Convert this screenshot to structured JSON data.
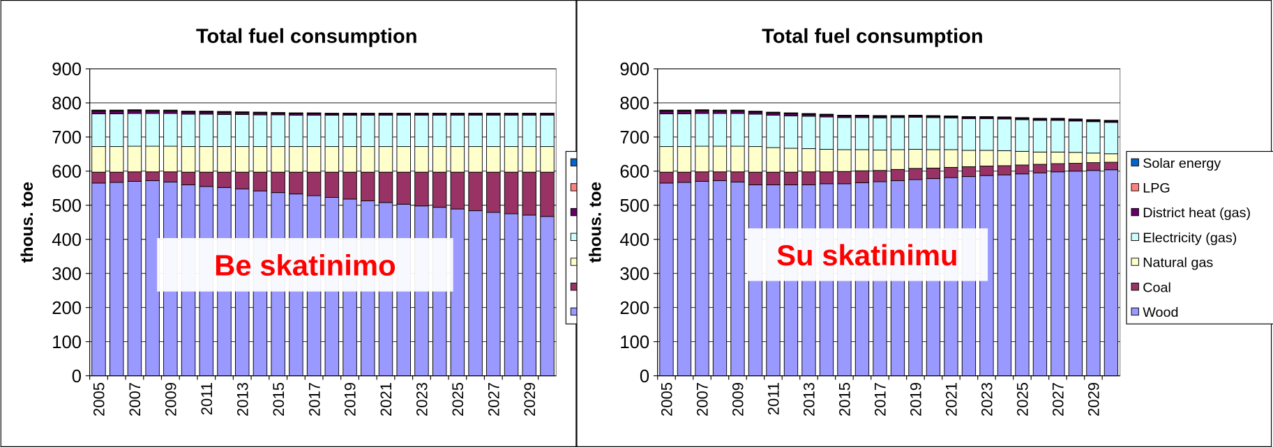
{
  "chart_data": [
    {
      "type": "bar",
      "stacked": true,
      "title": "Total fuel consumption",
      "ylabel": "thous. toe",
      "annotation": "Be skatinimo",
      "categories": [
        "2005",
        null,
        "2007",
        null,
        "2009",
        null,
        "2011",
        null,
        "2013",
        null,
        "2015",
        null,
        "2017",
        null,
        "2019",
        null,
        "2021",
        null,
        "2023",
        null,
        "2025",
        null,
        "2027",
        null,
        "2029",
        null
      ],
      "ylim": [
        0,
        900
      ],
      "yticks": [
        0,
        100,
        200,
        300,
        400,
        500,
        600,
        700,
        800,
        900
      ],
      "grid": true,
      "series": [
        {
          "color": "#9999ff",
          "values": [
            565,
            567,
            570,
            572,
            568,
            560,
            555,
            552,
            548,
            542,
            537,
            533,
            528,
            523,
            518,
            513,
            508,
            503,
            498,
            494,
            489,
            484,
            479,
            475,
            471,
            467
          ]
        },
        {
          "color": "#993366",
          "values": [
            32,
            30,
            28,
            26,
            30,
            37,
            42,
            45,
            49,
            55,
            60,
            64,
            69,
            74,
            79,
            84,
            89,
            94,
            99,
            103,
            108,
            113,
            118,
            122,
            126,
            130
          ]
        },
        {
          "color": "#ffffcc",
          "values": [
            75,
            75,
            75,
            75,
            75,
            75,
            75,
            75,
            75,
            75,
            75,
            75,
            75,
            75,
            75,
            75,
            75,
            75,
            75,
            75,
            75,
            75,
            75,
            75,
            75,
            75
          ]
        },
        {
          "color": "#ccffff",
          "values": [
            96,
            96,
            96,
            96,
            96,
            95,
            95,
            94,
            94,
            93,
            93,
            92,
            92,
            92,
            92,
            92,
            92,
            92,
            92,
            92,
            92,
            92,
            92,
            92,
            92,
            92
          ]
        },
        {
          "color": "#660066",
          "values": [
            8,
            8,
            8,
            7,
            7,
            6,
            6,
            6,
            5,
            5,
            4,
            4,
            4,
            3,
            3,
            3,
            3,
            3,
            3,
            3,
            3,
            3,
            3,
            3,
            3,
            3
          ]
        },
        {
          "color": "#ff8080",
          "values": [
            2,
            2,
            2,
            2,
            2,
            2,
            2,
            2,
            2,
            2,
            2,
            2,
            2,
            2,
            2,
            2,
            2,
            2,
            2,
            2,
            2,
            2,
            2,
            2,
            2,
            2
          ]
        },
        {
          "color": "#0066cc",
          "values": [
            1,
            1,
            1,
            1,
            1,
            1,
            1,
            1,
            1,
            1,
            1,
            1,
            1,
            1,
            1,
            1,
            1,
            1,
            1,
            1,
            1,
            1,
            1,
            1,
            1,
            1
          ]
        }
      ]
    },
    {
      "type": "bar",
      "stacked": true,
      "title": "Total fuel consumption",
      "ylabel": "thous. toe",
      "annotation": "Su skatinimu",
      "categories": [
        "2005",
        null,
        "2007",
        null,
        "2009",
        null,
        "2011",
        null,
        "2013",
        null,
        "2015",
        null,
        "2017",
        null,
        "2019",
        null,
        "2021",
        null,
        "2023",
        null,
        "2025",
        null,
        "2027",
        null,
        "2029",
        null
      ],
      "ylim": [
        0,
        900
      ],
      "yticks": [
        0,
        100,
        200,
        300,
        400,
        500,
        600,
        700,
        800,
        900
      ],
      "grid": true,
      "series": [
        {
          "name": "Wood",
          "color": "#9999ff",
          "values": [
            565,
            567,
            570,
            572,
            568,
            560,
            560,
            560,
            560,
            563,
            563,
            566,
            569,
            572,
            575,
            578,
            581,
            584,
            587,
            589,
            592,
            595,
            598,
            600,
            602,
            604
          ]
        },
        {
          "name": "Coal",
          "color": "#993366",
          "values": [
            32,
            30,
            28,
            26,
            30,
            37,
            37,
            37,
            38,
            35,
            36,
            35,
            33,
            33,
            33,
            31,
            30,
            29,
            28,
            27,
            26,
            25,
            24,
            23,
            23,
            22
          ]
        },
        {
          "name": "Natural gas",
          "color": "#ffffcc",
          "values": [
            75,
            75,
            75,
            75,
            75,
            75,
            72,
            70,
            68,
            66,
            64,
            62,
            60,
            58,
            56,
            54,
            52,
            48,
            46,
            44,
            40,
            36,
            34,
            32,
            28,
            25
          ]
        },
        {
          "name": "Electricity (gas)",
          "color": "#ccffff",
          "values": [
            96,
            96,
            96,
            96,
            96,
            95,
            95,
            95,
            95,
            95,
            94,
            94,
            94,
            94,
            94,
            94,
            93,
            93,
            93,
            93,
            93,
            93,
            93,
            92,
            92,
            92
          ]
        },
        {
          "name": "District heat (gas)",
          "color": "#660066",
          "values": [
            8,
            8,
            8,
            7,
            7,
            6,
            6,
            6,
            5,
            5,
            4,
            4,
            4,
            3,
            3,
            3,
            3,
            3,
            3,
            3,
            3,
            3,
            3,
            3,
            3,
            3
          ]
        },
        {
          "name": "LPG",
          "color": "#ff8080",
          "values": [
            2,
            2,
            2,
            2,
            2,
            2,
            2,
            2,
            2,
            2,
            2,
            2,
            2,
            2,
            2,
            2,
            2,
            2,
            2,
            2,
            2,
            2,
            2,
            2,
            2,
            2
          ]
        },
        {
          "name": "Solar energy",
          "color": "#0066cc",
          "values": [
            1,
            1,
            1,
            1,
            1,
            1,
            1,
            1,
            1,
            1,
            1,
            1,
            1,
            1,
            1,
            1,
            1,
            1,
            1,
            1,
            1,
            1,
            1,
            1,
            1,
            1
          ]
        }
      ]
    }
  ]
}
